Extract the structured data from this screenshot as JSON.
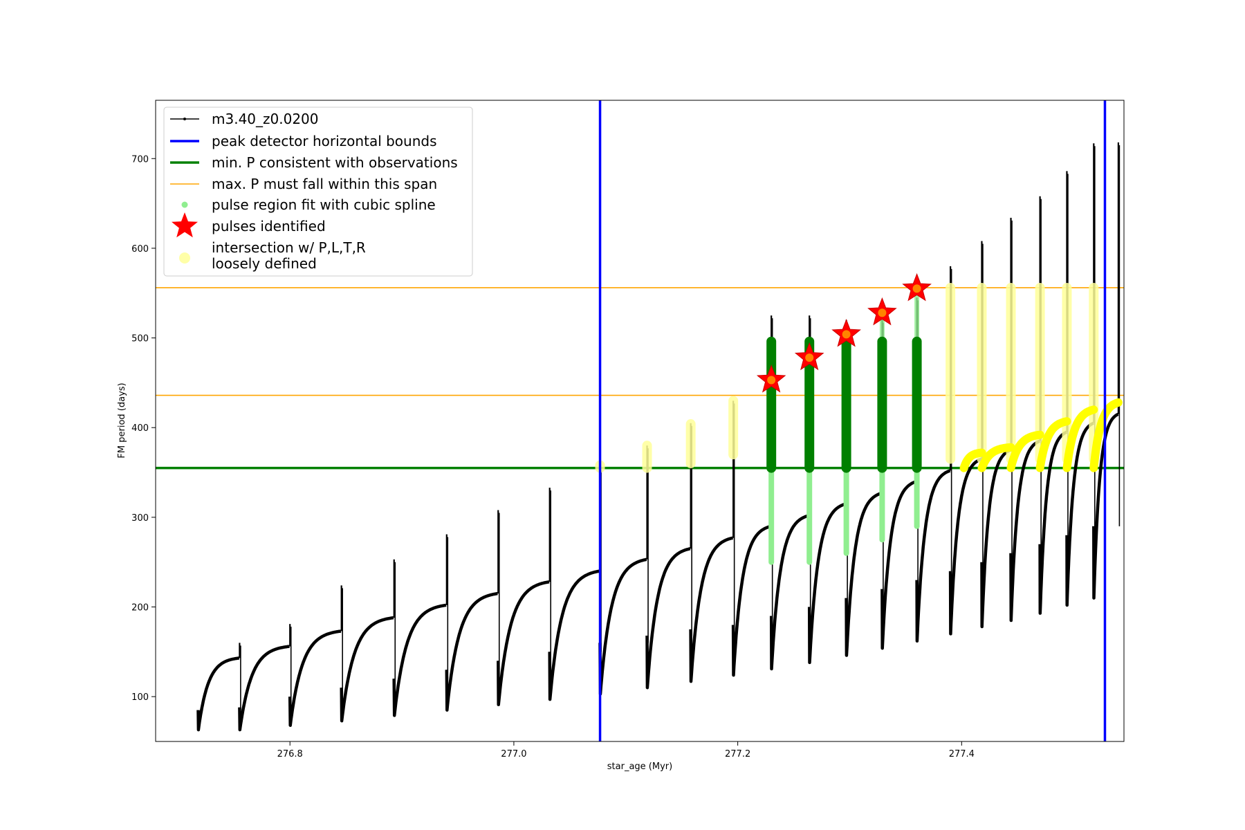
{
  "chart_data": {
    "type": "line",
    "xlabel": "star_age (Myr)",
    "ylabel": "FM period (days)",
    "xlim": [
      276.68,
      277.545
    ],
    "ylim": [
      50,
      765
    ],
    "xticks": [
      276.8,
      277.0,
      277.2,
      277.4
    ],
    "xtick_labels": [
      "276.8",
      "277.0",
      "277.2",
      "277.4"
    ],
    "yticks": [
      100,
      200,
      300,
      400,
      500,
      600,
      700
    ],
    "ytick_labels": [
      "100",
      "200",
      "300",
      "400",
      "500",
      "600",
      "700"
    ],
    "grid": false,
    "legend_position": "top-left",
    "colors": {
      "track": "#000000",
      "bounds": "#0000ff",
      "min_period": "#008000",
      "max_period": "#ffa500",
      "spline": "#90ee90",
      "pulse_fill": "#008000",
      "star": "#ff0000",
      "loose": "#ffff99",
      "loose_bright": "#ffff00"
    },
    "legend": [
      {
        "key": "track",
        "label": "m3.40_z0.0200"
      },
      {
        "key": "bounds",
        "label": "peak detector horizontal bounds"
      },
      {
        "key": "min_period",
        "label": "min. P consistent with observations"
      },
      {
        "key": "max_period",
        "label": "max. P must fall within this span"
      },
      {
        "key": "spline",
        "label": "pulse region fit with cubic spline"
      },
      {
        "key": "star",
        "label": "pulses identified"
      },
      {
        "key": "loose",
        "label": "intersection w/ P,L,T,R",
        "label2": "loosely defined"
      }
    ],
    "vertical_bounds_x": [
      277.077,
      277.528
    ],
    "min_period_y": 355,
    "max_period_y": [
      436,
      556
    ],
    "cycles": [
      {
        "start": 276.718,
        "end": 276.755,
        "min": 63,
        "max": 143,
        "spike": 160,
        "dip": 85
      },
      {
        "start": 276.755,
        "end": 276.8,
        "min": 63,
        "max": 156,
        "spike": 181,
        "dip": 88
      },
      {
        "start": 276.8,
        "end": 276.846,
        "min": 68,
        "max": 173,
        "spike": 224,
        "dip": 100
      },
      {
        "start": 276.846,
        "end": 276.893,
        "min": 73,
        "max": 188,
        "spike": 253,
        "dip": 110
      },
      {
        "start": 276.893,
        "end": 276.94,
        "min": 79,
        "max": 202,
        "spike": 281,
        "dip": 120
      },
      {
        "start": 276.94,
        "end": 276.986,
        "min": 85,
        "max": 215,
        "spike": 308,
        "dip": 130
      },
      {
        "start": 276.986,
        "end": 277.032,
        "min": 91,
        "max": 228,
        "spike": 333,
        "dip": 140
      },
      {
        "start": 277.032,
        "end": 277.077,
        "min": 97,
        "max": 240,
        "spike": 355,
        "dip": 150
      },
      {
        "start": 277.077,
        "end": 277.119,
        "min": 103,
        "max": 253,
        "spike": 380,
        "dip": 160
      },
      {
        "start": 277.119,
        "end": 277.158,
        "min": 110,
        "max": 265,
        "spike": 405,
        "dip": 168
      },
      {
        "start": 277.158,
        "end": 277.196,
        "min": 117,
        "max": 277,
        "spike": 430,
        "dip": 175
      },
      {
        "start": 277.196,
        "end": 277.23,
        "min": 124,
        "max": 290,
        "spike": 525,
        "dip": 180
      },
      {
        "start": 277.23,
        "end": 277.264,
        "min": 131,
        "max": 302,
        "spike": 525,
        "dip": 190
      },
      {
        "start": 277.264,
        "end": 277.297,
        "min": 138,
        "max": 315,
        "spike": 520,
        "dip": 200
      },
      {
        "start": 277.297,
        "end": 277.329,
        "min": 146,
        "max": 327,
        "spike": 520,
        "dip": 210
      },
      {
        "start": 277.329,
        "end": 277.36,
        "min": 154,
        "max": 340,
        "spike": 545,
        "dip": 220
      },
      {
        "start": 277.36,
        "end": 277.39,
        "min": 162,
        "max": 352,
        "spike": 580,
        "dip": 230
      },
      {
        "start": 277.39,
        "end": 277.418,
        "min": 170,
        "max": 365,
        "spike": 608,
        "dip": 240
      },
      {
        "start": 277.418,
        "end": 277.444,
        "min": 178,
        "max": 375,
        "spike": 634,
        "dip": 250
      },
      {
        "start": 277.444,
        "end": 277.47,
        "min": 185,
        "max": 385,
        "spike": 658,
        "dip": 260
      },
      {
        "start": 277.47,
        "end": 277.494,
        "min": 193,
        "max": 395,
        "spike": 686,
        "dip": 270
      },
      {
        "start": 277.494,
        "end": 277.518,
        "min": 202,
        "max": 405,
        "spike": 717,
        "dip": 280
      },
      {
        "start": 277.518,
        "end": 277.54,
        "min": 210,
        "max": 415,
        "spike": 718,
        "dip": 290
      }
    ],
    "pulses": [
      {
        "x": 277.23,
        "star_y": 453,
        "spline_low": 250,
        "fill_low": 355,
        "fill_high": 496
      },
      {
        "x": 277.264,
        "star_y": 478,
        "spline_low": 250,
        "fill_low": 355,
        "fill_high": 496
      },
      {
        "x": 277.297,
        "star_y": 504,
        "spline_low": 260,
        "fill_low": 355,
        "fill_high": 496
      },
      {
        "x": 277.329,
        "star_y": 528,
        "spline_low": 275,
        "fill_low": 355,
        "fill_high": 496
      },
      {
        "x": 277.36,
        "star_y": 555,
        "spline_low": 290,
        "fill_low": 355,
        "fill_high": 496
      }
    ],
    "loose_columns": [
      {
        "x": 277.077,
        "low": 355,
        "high": 358
      },
      {
        "x": 277.119,
        "low": 355,
        "high": 380
      },
      {
        "x": 277.158,
        "low": 360,
        "high": 404
      },
      {
        "x": 277.196,
        "low": 370,
        "high": 430
      },
      {
        "x": 277.39,
        "low": 365,
        "high": 556
      },
      {
        "x": 277.418,
        "low": 365,
        "high": 556
      },
      {
        "x": 277.444,
        "low": 365,
        "high": 556
      },
      {
        "x": 277.47,
        "low": 365,
        "high": 556
      },
      {
        "x": 277.494,
        "low": 365,
        "high": 556
      },
      {
        "x": 277.518,
        "low": 365,
        "high": 556
      }
    ],
    "loose_arcs": [
      {
        "start": 277.402,
        "end": 277.418,
        "low": 355,
        "high": 372
      },
      {
        "start": 277.418,
        "end": 277.444,
        "low": 355,
        "high": 378
      },
      {
        "start": 277.444,
        "end": 277.47,
        "low": 355,
        "high": 392
      },
      {
        "start": 277.47,
        "end": 277.494,
        "low": 355,
        "high": 407
      },
      {
        "start": 277.494,
        "end": 277.518,
        "low": 355,
        "high": 420
      },
      {
        "start": 277.518,
        "end": 277.54,
        "low": 355,
        "high": 428
      }
    ]
  }
}
